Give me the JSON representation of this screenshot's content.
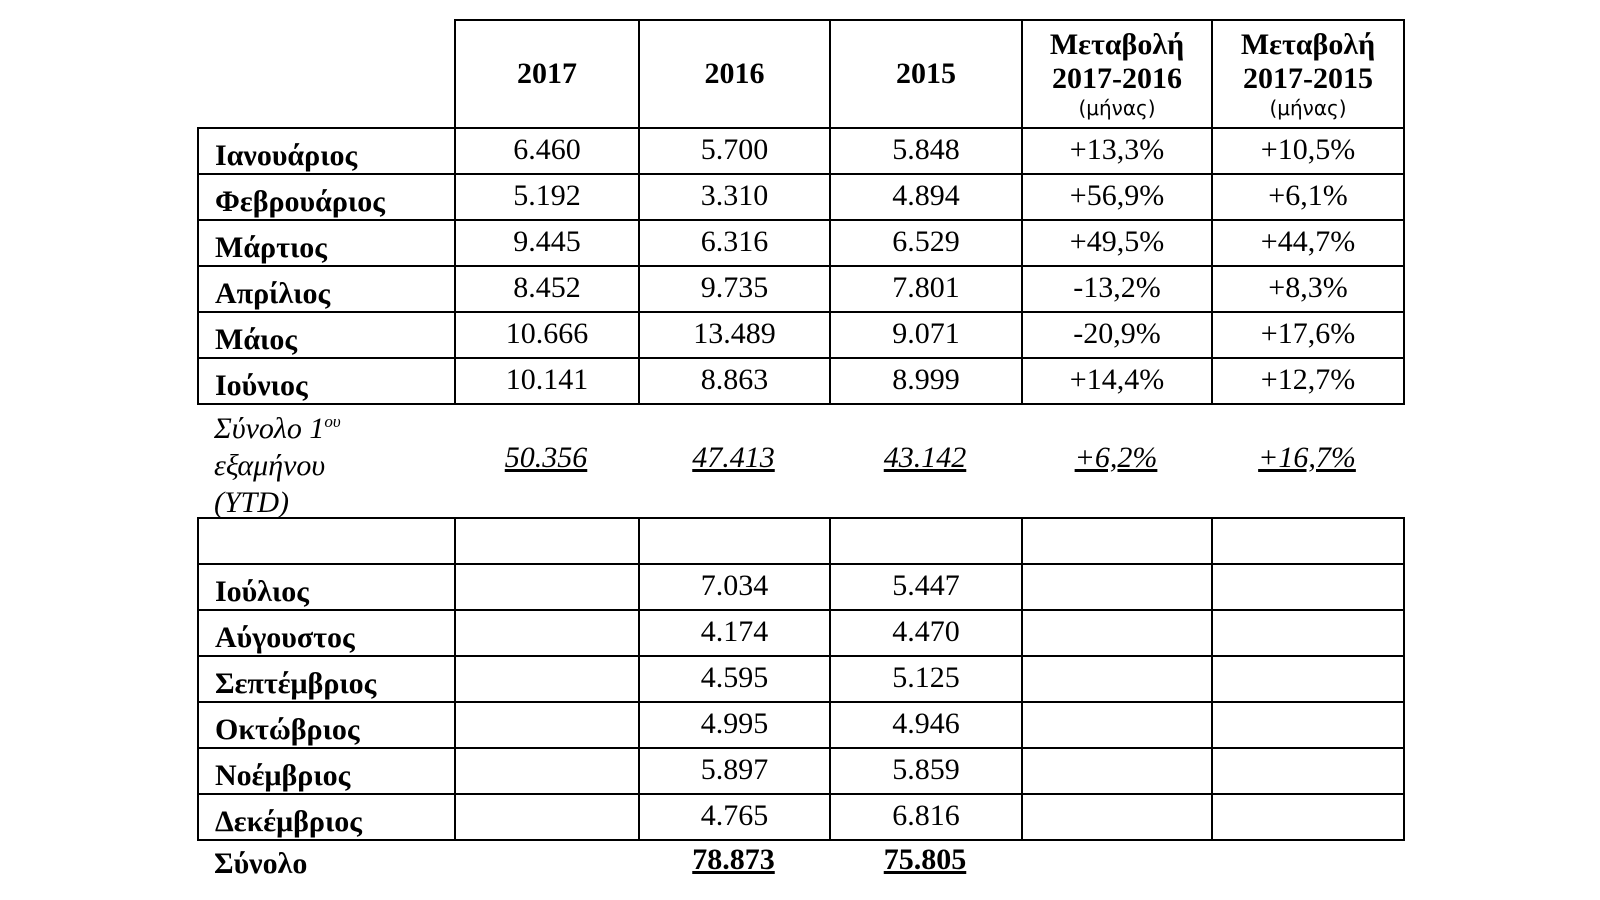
{
  "table": {
    "headers": [
      {
        "line1": "2017",
        "line2": "",
        "sub": ""
      },
      {
        "line1": "2016",
        "line2": "",
        "sub": ""
      },
      {
        "line1": "2015",
        "line2": "",
        "sub": ""
      },
      {
        "line1": "Μεταβολή",
        "line2": "2017-2016",
        "sub": "(μήνας)"
      },
      {
        "line1": "Μεταβολή",
        "line2": "2017-2015",
        "sub": "(μήνας)"
      }
    ],
    "first_half": [
      {
        "month": "Ιανουάριος",
        "values": [
          "6.460",
          "5.700",
          "5.848",
          "+13,3%",
          "+10,5%"
        ]
      },
      {
        "month": "Φεβρουάριος",
        "values": [
          "5.192",
          "3.310",
          "4.894",
          "+56,9%",
          "+6,1%"
        ]
      },
      {
        "month": "Μάρτιος",
        "values": [
          "9.445",
          "6.316",
          "6.529",
          "+49,5%",
          "+44,7%"
        ]
      },
      {
        "month": "Απρίλιος",
        "values": [
          "8.452",
          "9.735",
          "7.801",
          "-13,2%",
          "+8,3%"
        ]
      },
      {
        "month": "Μάιος",
        "values": [
          "10.666",
          "13.489",
          "9.071",
          "-20,9%",
          "+17,6%"
        ]
      },
      {
        "month": "Ιούνιος",
        "values": [
          "10.141",
          "8.863",
          "8.999",
          "+14,4%",
          "+12,7%"
        ]
      }
    ],
    "ytd": {
      "label_line1": "Σύνολο 1",
      "label_sup": "ου",
      "label_line2": "εξαμήνου",
      "label_line3": "(YTD)",
      "values": [
        "50.356",
        "47.413",
        "43.142",
        "+6,2%",
        "+16,7%"
      ]
    },
    "second_half": [
      {
        "month": "Ιούλιος",
        "values": [
          "",
          "7.034",
          "5.447",
          "",
          ""
        ]
      },
      {
        "month": "Αύγουστος",
        "values": [
          "",
          "4.174",
          "4.470",
          "",
          ""
        ]
      },
      {
        "month": "Σεπτέμβριος",
        "values": [
          "",
          "4.595",
          "5.125",
          "",
          ""
        ]
      },
      {
        "month": "Οκτώβριος",
        "values": [
          "",
          "4.995",
          "4.946",
          "",
          ""
        ]
      },
      {
        "month": "Νοέμβριος",
        "values": [
          "",
          "5.897",
          "5.859",
          "",
          ""
        ]
      },
      {
        "month": "Δεκέμβριος",
        "values": [
          "",
          "4.765",
          "6.816",
          "",
          ""
        ]
      }
    ],
    "total": {
      "label": "Σύνολο",
      "values": [
        "",
        "78.873",
        "75.805",
        "",
        ""
      ]
    }
  }
}
